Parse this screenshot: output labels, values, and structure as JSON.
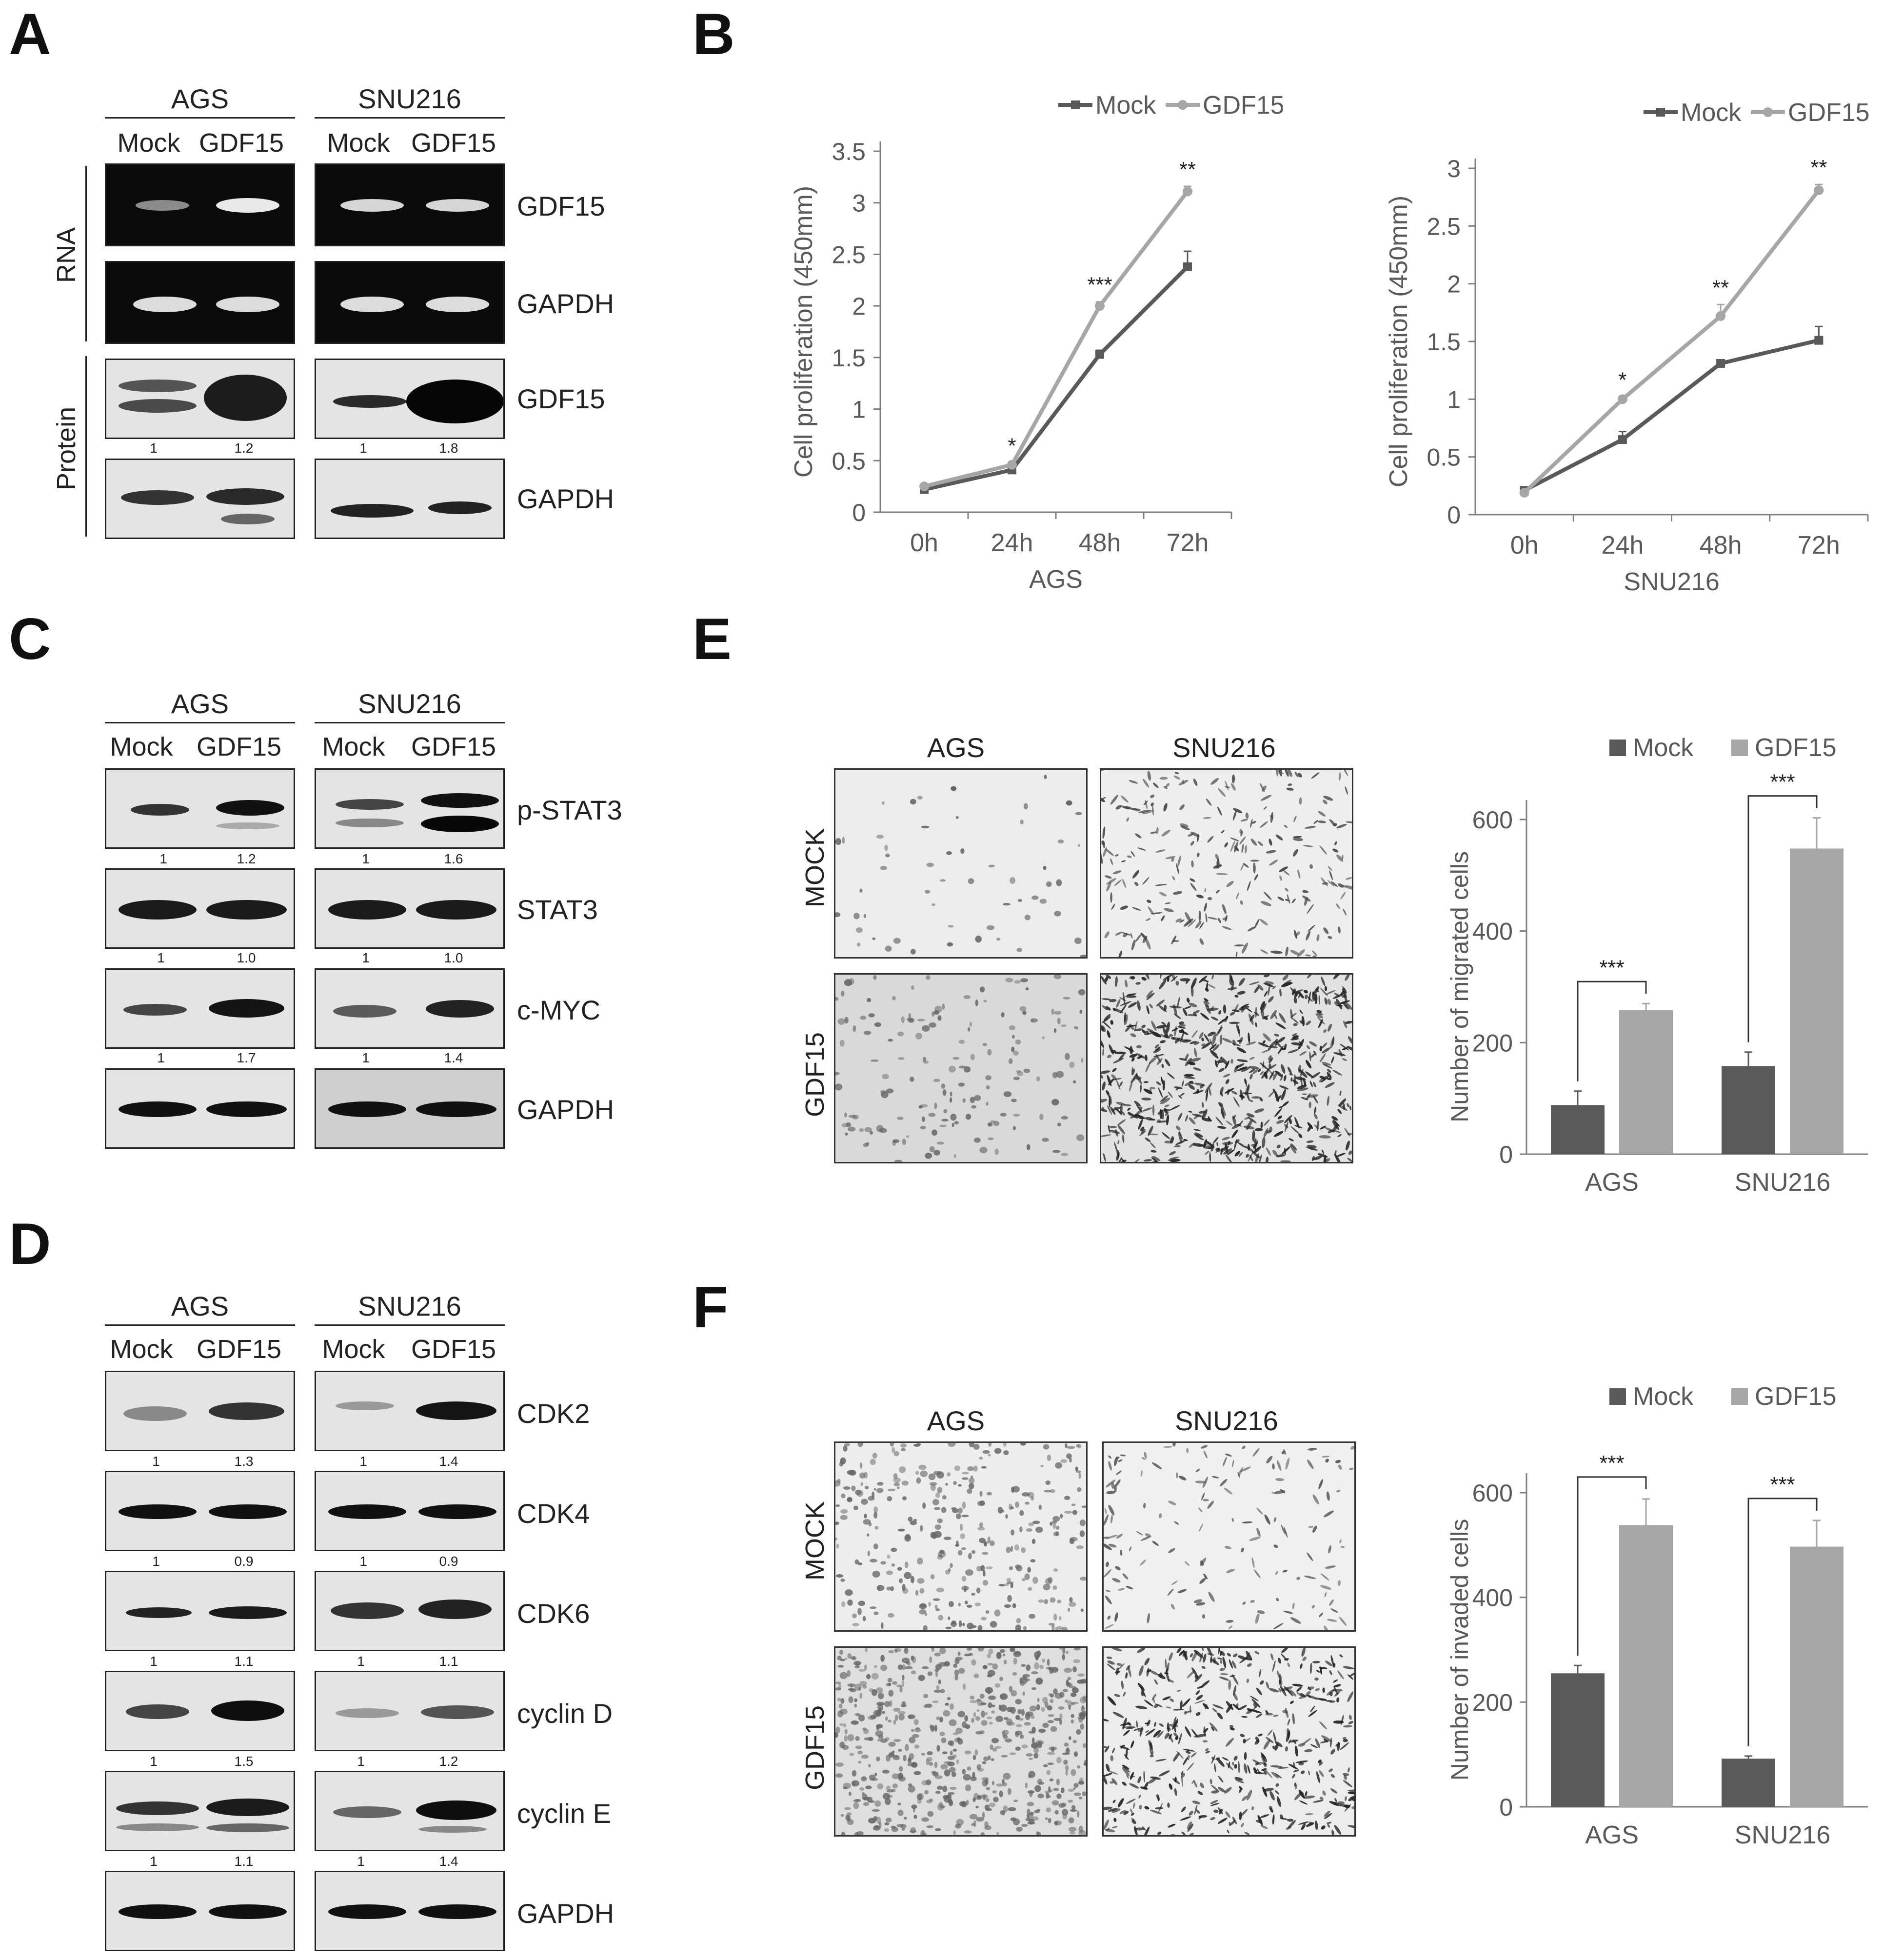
{
  "panels": {
    "A": "A",
    "B": "B",
    "C": "C",
    "D": "D",
    "E": "E",
    "F": "F"
  },
  "cell_lines": {
    "ags": "AGS",
    "snu": "SNU216"
  },
  "lanes": {
    "mock": "Mock",
    "gdf": "GDF15"
  },
  "side_labels": {
    "rna": "RNA",
    "protein": "Protein",
    "mock_upper": "MOCK",
    "gdf_upper": "GDF15"
  },
  "panelA": {
    "rows": [
      {
        "target": "GDF15",
        "section": "RNA"
      },
      {
        "target": "GAPDH",
        "section": "RNA"
      },
      {
        "target": "GDF15",
        "section": "Protein",
        "quant": [
          "1",
          "1.2",
          "1",
          "1.8"
        ]
      },
      {
        "target": "GAPDH",
        "section": "Protein"
      }
    ]
  },
  "panelC": {
    "rows": [
      {
        "target": "p-STAT3",
        "quant": [
          "1",
          "1.2",
          "1",
          "1.6"
        ]
      },
      {
        "target": "STAT3",
        "quant": [
          "1",
          "1.0",
          "1",
          "1.0"
        ]
      },
      {
        "target": "c-MYC",
        "quant": [
          "1",
          "1.7",
          "1",
          "1.4"
        ]
      },
      {
        "target": "GAPDH"
      }
    ]
  },
  "panelD": {
    "rows": [
      {
        "target": "CDK2",
        "quant": [
          "1",
          "1.3",
          "1",
          "1.4"
        ]
      },
      {
        "target": "CDK4",
        "quant": [
          "1",
          "0.9",
          "1",
          "0.9"
        ]
      },
      {
        "target": "CDK6",
        "quant": [
          "1",
          "1.1",
          "1",
          "1.1"
        ]
      },
      {
        "target": "cyclin D",
        "quant": [
          "1",
          "1.5",
          "1",
          "1.2"
        ]
      },
      {
        "target": "cyclin E",
        "quant": [
          "1",
          "1.1",
          "1",
          "1.4"
        ]
      },
      {
        "target": "GAPDH"
      }
    ]
  },
  "colors": {
    "mock": "#595959",
    "gdf": "#a6a6a6",
    "axis": "#7f7f7f",
    "text": "#595959"
  },
  "chart_data": [
    {
      "id": "B-AGS",
      "type": "line",
      "xlabel": "AGS",
      "ylabel": "Cell proliferation (450mm)",
      "categories": [
        "0h",
        "24h",
        "48h",
        "72h"
      ],
      "ylim": [
        0,
        3.5
      ],
      "yticks": [
        "0",
        "0.5",
        "1",
        "1.5",
        "2",
        "2.5",
        "3",
        "3.5"
      ],
      "series": [
        {
          "name": "Mock",
          "values": [
            0.22,
            0.41,
            1.53,
            2.38
          ],
          "err": [
            0.01,
            0.02,
            0.04,
            0.15
          ]
        },
        {
          "name": "GDF15",
          "values": [
            0.25,
            0.46,
            2.0,
            3.11
          ],
          "err": [
            0.01,
            0.02,
            0.04,
            0.05
          ]
        }
      ],
      "annotations": [
        "",
        "*",
        "***",
        "**"
      ],
      "legend": "top"
    },
    {
      "id": "B-SNU216",
      "type": "line",
      "xlabel": "SNU216",
      "ylabel": "Cell proliferation (450mm)",
      "categories": [
        "0h",
        "24h",
        "48h",
        "72h"
      ],
      "ylim": [
        0,
        3
      ],
      "yticks": [
        "0",
        "0.5",
        "1",
        "1.5",
        "2",
        "2.5",
        "3"
      ],
      "series": [
        {
          "name": "Mock",
          "values": [
            0.21,
            0.65,
            1.31,
            1.51
          ],
          "err": [
            0.02,
            0.07,
            0.02,
            0.12
          ]
        },
        {
          "name": "GDF15",
          "values": [
            0.19,
            1.0,
            1.72,
            2.81
          ],
          "err": [
            0.02,
            0.02,
            0.1,
            0.05
          ]
        }
      ],
      "annotations": [
        "",
        "*",
        "**",
        "**"
      ],
      "legend": "top"
    },
    {
      "id": "E",
      "type": "bar",
      "ylabel": "Number of migrated cells",
      "categories": [
        "AGS",
        "SNU216"
      ],
      "ylim": [
        0,
        600
      ],
      "yticks": [
        "0",
        "200",
        "400",
        "600"
      ],
      "series": [
        {
          "name": "Mock",
          "values": [
            88,
            158
          ],
          "err": [
            25,
            25
          ]
        },
        {
          "name": "GDF15",
          "values": [
            258,
            548
          ],
          "err": [
            12,
            55
          ]
        }
      ],
      "annotations": [
        "***",
        "***"
      ],
      "legend": "top"
    },
    {
      "id": "F",
      "type": "bar",
      "ylabel": "Number of invaded cells",
      "categories": [
        "AGS",
        "SNU216"
      ],
      "ylim": [
        0,
        600
      ],
      "yticks": [
        "0",
        "200",
        "400",
        "600"
      ],
      "series": [
        {
          "name": "Mock",
          "values": [
            255,
            92
          ],
          "err": [
            15,
            5
          ]
        },
        {
          "name": "GDF15",
          "values": [
            538,
            497
          ],
          "err": [
            50,
            50
          ]
        }
      ],
      "annotations": [
        "***",
        "***"
      ],
      "legend": "top"
    }
  ]
}
